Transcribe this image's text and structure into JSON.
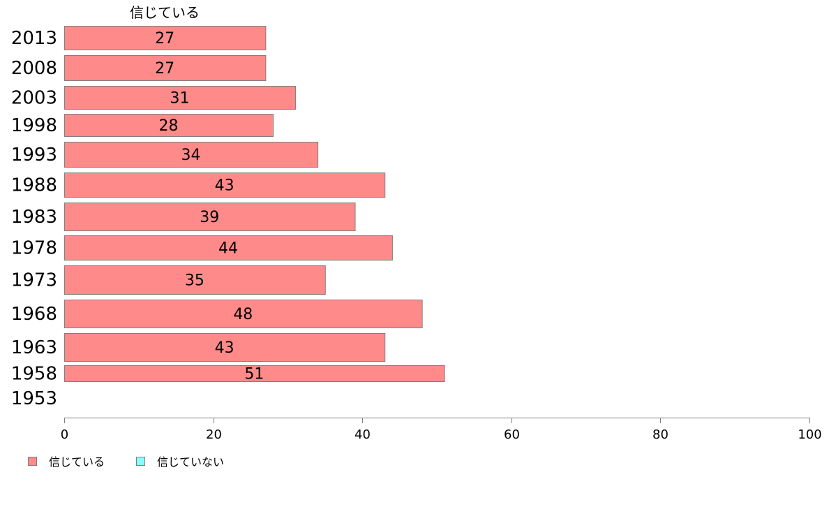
{
  "chart_data": {
    "type": "bar",
    "orientation": "horizontal",
    "title": "",
    "series_title": "信じている",
    "xlabel": "",
    "ylabel": "",
    "xlim": [
      0,
      100
    ],
    "x_ticks": [
      "0",
      "20",
      "40",
      "60",
      "80",
      "100"
    ],
    "grid": false,
    "legend_position": "bottom-left",
    "categories": [
      "2013",
      "2008",
      "2003",
      "1998",
      "1993",
      "1988",
      "1983",
      "1978",
      "1973",
      "1968",
      "1963",
      "1958",
      "1953"
    ],
    "series": [
      {
        "name": "信じている",
        "color": "#ff8a8a",
        "values": [
          27,
          27,
          31,
          28,
          34,
          43,
          39,
          44,
          35,
          48,
          43,
          51,
          null
        ],
        "labels": [
          "27",
          "27",
          "31",
          "28",
          "34",
          "43",
          "39",
          "44",
          "35",
          "48",
          "43",
          "51",
          ""
        ]
      },
      {
        "name": "信じていない",
        "color": "#8affff",
        "values": [
          null,
          null,
          null,
          null,
          null,
          null,
          null,
          null,
          null,
          null,
          null,
          null,
          null
        ]
      }
    ],
    "legend": [
      "信じている",
      "信じていない"
    ]
  }
}
